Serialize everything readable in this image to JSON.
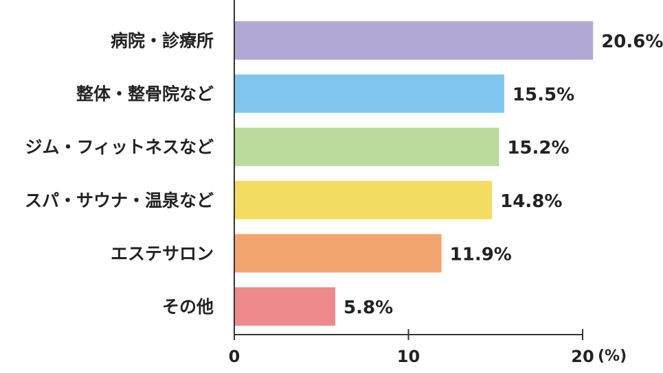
{
  "chart_data": {
    "type": "bar",
    "orientation": "horizontal",
    "categories": [
      "病院・診療所",
      "整体・整骨院など",
      "ジム・フィットネスなど",
      "スパ・サウナ・温泉など",
      "エステサロン",
      "その他"
    ],
    "values": [
      20.6,
      15.5,
      15.2,
      14.8,
      11.9,
      5.8
    ],
    "value_labels": [
      "20.6%",
      "15.5%",
      "15.2%",
      "14.8%",
      "11.9%",
      "5.8%"
    ],
    "colors": [
      "#b3a8d4",
      "#7fc6ee",
      "#badb9c",
      "#f3dc62",
      "#f2a56f",
      "#ef8a8c"
    ],
    "xlim": [
      0,
      20
    ],
    "x_ticks": [
      0,
      10,
      20
    ],
    "x_tick_labels": [
      "0",
      "10",
      "20"
    ],
    "x_unit": "(%)",
    "grid": false,
    "title": "",
    "xlabel": "",
    "ylabel": ""
  }
}
